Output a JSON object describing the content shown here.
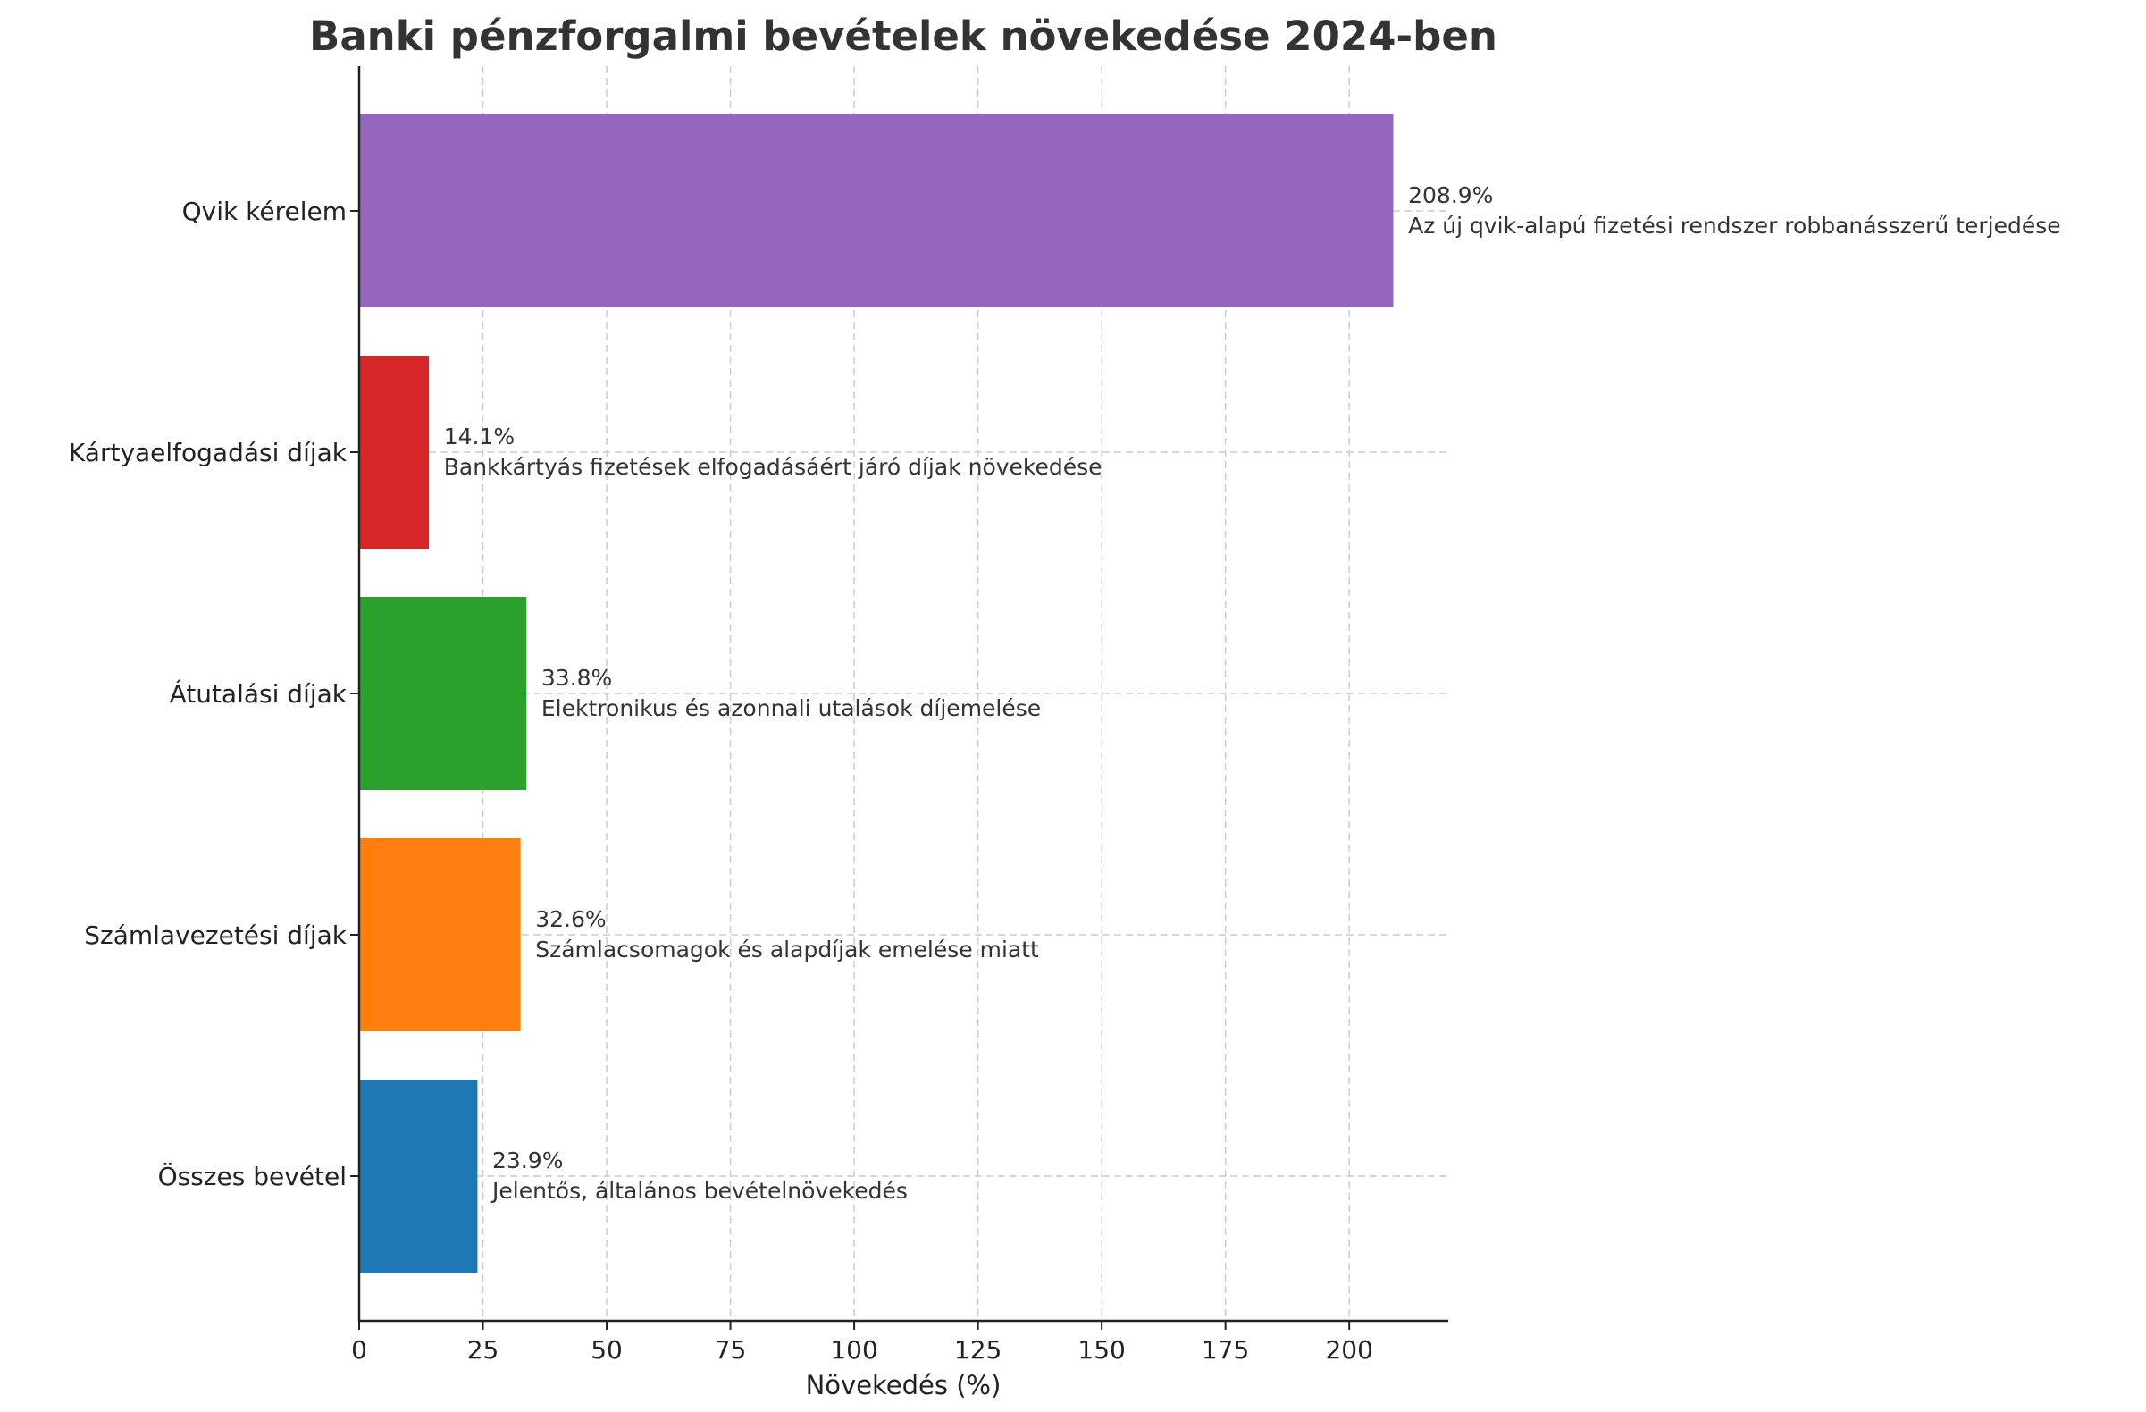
{
  "chart_data": {
    "type": "bar",
    "orientation": "horizontal",
    "title": "Banki pénzforgalmi bevételek növekedése 2024-ben",
    "xlabel": "Növekedés (%)",
    "ylabel": "",
    "xlim": [
      0,
      220
    ],
    "xticks": [
      0,
      25,
      50,
      75,
      100,
      125,
      150,
      175,
      200
    ],
    "grid": true,
    "categories": [
      "Összes bevétel",
      "Számlavezetési díjak",
      "Átutalási díjak",
      "Kártyaelfogadási díjak",
      "Qvik kérelem"
    ],
    "values": [
      23.9,
      32.6,
      33.8,
      14.1,
      208.9
    ],
    "value_labels": [
      "23.9%",
      "32.6%",
      "33.8%",
      "14.1%",
      "208.9%"
    ],
    "annotations": [
      "Jelentős, általános bevételnövekedés",
      "Számlacsomagok és alapdíjak emelése miatt",
      "Elektronikus és azonnali utalások díjemelése",
      "Bankkártyás fizetések elfogadásáért járó díjak növekedése",
      "Az új qvik-alapú fizetési rendszer robbanásszerű terjedése"
    ],
    "colors": [
      "#1f77b4",
      "#ff7f0e",
      "#2ca02c",
      "#d62728",
      "#9467bd"
    ]
  }
}
